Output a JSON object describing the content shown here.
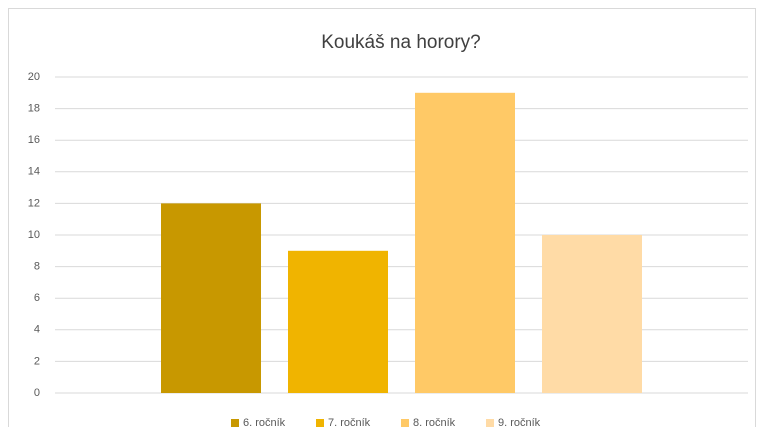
{
  "chart_data": {
    "type": "bar",
    "title": "Koukáš na horory?",
    "categories": [
      null
    ],
    "series": [
      {
        "name": "6. ročník",
        "color": "#c89800",
        "values": [
          12
        ]
      },
      {
        "name": "7. ročník",
        "color": "#f0b400",
        "values": [
          9
        ]
      },
      {
        "name": "8. ročník",
        "color": "#ffc966",
        "values": [
          19
        ]
      },
      {
        "name": "9. ročník",
        "color": "#ffdba6",
        "values": [
          10
        ]
      }
    ],
    "ylim": [
      0,
      20
    ],
    "yticks": [
      0,
      2,
      4,
      6,
      8,
      10,
      12,
      14,
      16,
      18,
      20
    ],
    "grid": true,
    "legend": "bottom"
  }
}
